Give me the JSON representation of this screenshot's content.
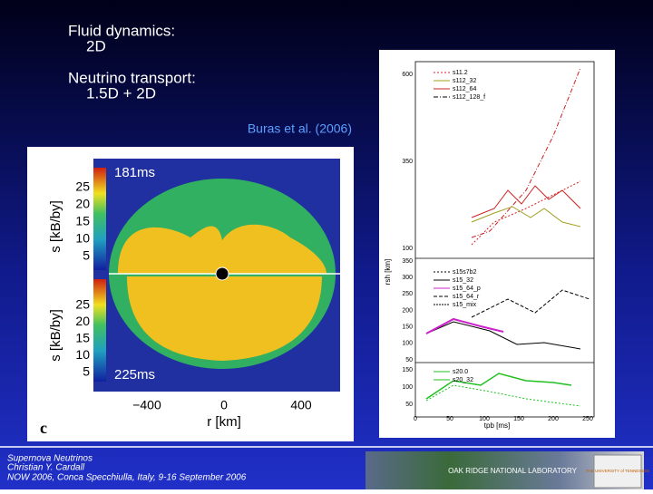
{
  "bullets": [
    {
      "head": "Fluid dynamics:",
      "sub": "2D"
    },
    {
      "head": "Neutrino transport:",
      "sub": "1.5D + 2D"
    }
  ],
  "citation": "Buras et al. (2006)",
  "left_figure": {
    "times": [
      "181ms",
      "225ms"
    ],
    "yticks": [
      "25",
      "20",
      "15",
      "10",
      "5"
    ],
    "ylabel": "s [kB/by]",
    "xticks": [
      "−400",
      "0",
      "400"
    ],
    "xlabel": "r [km]",
    "panel": "c"
  },
  "right_figure": {
    "panels": [
      {
        "legend": [
          "s11.2",
          "s112_32",
          "s112_64",
          "s112_128_f"
        ],
        "yticks": [
          "600",
          "350",
          "100"
        ]
      },
      {
        "legend": [
          "s15s7b2",
          "s15_32",
          "s15_64_p",
          "s15_64_r",
          "s15_mix"
        ],
        "yticks": [
          "350",
          "300",
          "250",
          "200",
          "150",
          "100",
          "50"
        ]
      },
      {
        "legend": [
          "s20.0",
          "s20_32"
        ],
        "yticks": [
          "150",
          "100",
          "50"
        ]
      }
    ],
    "xticks": [
      "0",
      "50",
      "100",
      "150",
      "200",
      "250"
    ],
    "xlabel": "tpb [ms]",
    "ylabel": "rsh [km]"
  },
  "footer": [
    "Supernova Neutrinos",
    "Christian Y. Cardall",
    "NOW 2006, Conca Specchiulla, Italy, 9-16 September 2006"
  ],
  "logos": [
    "OAK RIDGE NATIONAL LABORATORY",
    "THE UNIVERSITY of TENNESSEE"
  ]
}
